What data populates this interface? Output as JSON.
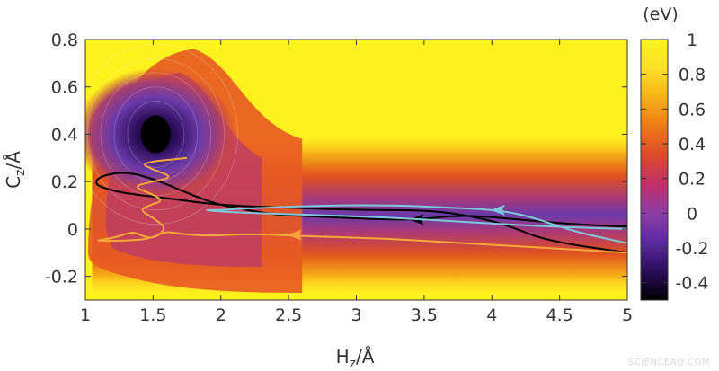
{
  "watermark": "SCIENCEAQ.COM",
  "chart_data": {
    "type": "heatmap",
    "title": "",
    "xlabel": {
      "main": "H",
      "sub": "z",
      "unit": "/Å"
    },
    "ylabel": {
      "main": "C",
      "sub": "z",
      "unit": "/Å"
    },
    "xlim": [
      1,
      5
    ],
    "ylim": [
      -0.3,
      0.8
    ],
    "x_ticks": [
      "1",
      "1.5",
      "2",
      "2.5",
      "3",
      "3.5",
      "4",
      "4.5",
      "5"
    ],
    "y_ticks": [
      "0.8",
      "0.6",
      "0.4",
      "0.2",
      "0",
      "-0.2"
    ],
    "colorbar": {
      "unit": "(eV)",
      "range": [
        -0.5,
        1
      ],
      "ticks": [
        "1",
        "0.8",
        "0.6",
        "0.4",
        "0.2",
        "0",
        "-0.2",
        "-0.4"
      ],
      "colors": [
        "#000000",
        "#2b0d5a",
        "#5b2aa0",
        "#8e3da8",
        "#c0306a",
        "#dd4a2a",
        "#ee7a18",
        "#f6b018",
        "#fde02a",
        "#fdf21e"
      ]
    },
    "energy_surface": {
      "global_minimum": {
        "x": 1.52,
        "y": 0.4,
        "energy": -0.5
      },
      "channel_center_y": 0.06,
      "channel_energy": -0.2
    },
    "series": [
      {
        "color": "#000000",
        "points": [
          [
            5,
            0.01
          ],
          [
            4.6,
            0.02
          ],
          [
            4.2,
            0.04
          ],
          [
            3.8,
            0.06
          ],
          [
            3.45,
            0.04
          ],
          [
            3.2,
            0.04
          ],
          [
            2.8,
            0.05
          ],
          [
            2.4,
            0.06
          ],
          [
            2.2,
            0.08
          ],
          [
            2.0,
            0.1
          ],
          [
            1.8,
            0.14
          ],
          [
            1.6,
            0.19
          ],
          [
            1.4,
            0.23
          ],
          [
            1.25,
            0.24
          ],
          [
            1.1,
            0.22
          ],
          [
            1.07,
            0.19
          ],
          [
            1.15,
            0.17
          ],
          [
            1.3,
            0.15
          ],
          [
            1.6,
            0.13
          ],
          [
            2.0,
            0.1
          ],
          [
            2.5,
            0.09
          ],
          [
            3.0,
            0.08
          ],
          [
            3.5,
            0.08
          ],
          [
            3.8,
            0.06
          ],
          [
            4.1,
            0.02
          ],
          [
            4.4,
            -0.05
          ],
          [
            5,
            -0.1
          ]
        ],
        "arrow_at": [
          3.45,
          0.04
        ]
      },
      {
        "color": "#7ec8d8",
        "points": [
          [
            5,
            -0.06
          ],
          [
            4.6,
            -0.01
          ],
          [
            4.3,
            0.05
          ],
          [
            4.05,
            0.08
          ],
          [
            3.7,
            0.09
          ],
          [
            3.3,
            0.1
          ],
          [
            2.8,
            0.1
          ],
          [
            2.3,
            0.09
          ],
          [
            2.0,
            0.08
          ],
          [
            1.85,
            0.08
          ],
          [
            2.1,
            0.07
          ],
          [
            2.6,
            0.06
          ],
          [
            3.2,
            0.05
          ],
          [
            3.8,
            0.03
          ],
          [
            4.4,
            0.01
          ],
          [
            5,
            0.0
          ]
        ],
        "arrow_at": [
          4.05,
          0.08
        ]
      },
      {
        "color": "#f5a83a",
        "points": [
          [
            5,
            -0.1
          ],
          [
            4.4,
            -0.08
          ],
          [
            3.8,
            -0.06
          ],
          [
            3.2,
            -0.04
          ],
          [
            2.6,
            -0.03
          ],
          [
            2.2,
            -0.02
          ],
          [
            1.9,
            -0.03
          ],
          [
            1.7,
            -0.02
          ],
          [
            1.58,
            -0.01
          ],
          [
            1.5,
            -0.04
          ],
          [
            1.42,
            -0.03
          ],
          [
            1.35,
            -0.01
          ],
          [
            1.2,
            -0.04
          ],
          [
            1.05,
            -0.05
          ],
          [
            1.3,
            -0.05
          ],
          [
            1.5,
            -0.04
          ],
          [
            1.6,
            0.0
          ],
          [
            1.52,
            0.04
          ],
          [
            1.4,
            0.08
          ],
          [
            1.47,
            0.1
          ],
          [
            1.58,
            0.12
          ],
          [
            1.48,
            0.15
          ],
          [
            1.35,
            0.18
          ],
          [
            1.5,
            0.2
          ],
          [
            1.65,
            0.22
          ],
          [
            1.5,
            0.25
          ],
          [
            1.4,
            0.28
          ],
          [
            1.75,
            0.3
          ]
        ],
        "arrow_at": [
          2.55,
          -0.025
        ]
      }
    ]
  }
}
